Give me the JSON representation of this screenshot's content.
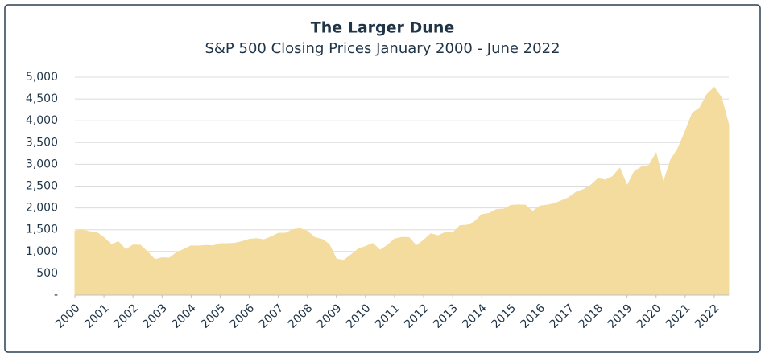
{
  "chart_data": {
    "type": "area",
    "title": "The Larger Dune",
    "subtitle": "S&P 500 Closing Prices January 2000 - June 2022",
    "color": "#f3dc9e",
    "grid": true,
    "x": [
      2000,
      2000.25,
      2000.5,
      2000.75,
      2001,
      2001.25,
      2001.5,
      2001.75,
      2002,
      2002.25,
      2002.5,
      2002.75,
      2003,
      2003.25,
      2003.5,
      2003.75,
      2004,
      2004.25,
      2004.5,
      2004.75,
      2005,
      2005.25,
      2005.5,
      2005.75,
      2006,
      2006.25,
      2006.5,
      2006.75,
      2007,
      2007.25,
      2007.5,
      2007.75,
      2008,
      2008.25,
      2008.5,
      2008.75,
      2009,
      2009.25,
      2009.5,
      2009.75,
      2010,
      2010.25,
      2010.5,
      2010.75,
      2011,
      2011.25,
      2011.5,
      2011.75,
      2012,
      2012.25,
      2012.5,
      2012.75,
      2013,
      2013.25,
      2013.5,
      2013.75,
      2014,
      2014.25,
      2014.5,
      2014.75,
      2015,
      2015.25,
      2015.5,
      2015.75,
      2016,
      2016.25,
      2016.5,
      2016.75,
      2017,
      2017.25,
      2017.5,
      2017.75,
      2018,
      2018.25,
      2018.5,
      2018.75,
      2019,
      2019.25,
      2019.5,
      2019.75,
      2020,
      2020.25,
      2020.5,
      2020.75,
      2021,
      2021.25,
      2021.5,
      2021.75,
      2022,
      2022.25,
      2022.5
    ],
    "values": [
      1469,
      1499,
      1455,
      1436,
      1320,
      1160,
      1224,
      1040,
      1148,
      1147,
      989,
      815,
      855,
      848,
      975,
      1050,
      1131,
      1126,
      1141,
      1130,
      1181,
      1180,
      1191,
      1228,
      1280,
      1295,
      1270,
      1335,
      1418,
      1420,
      1503,
      1527,
      1468,
      1322,
      1280,
      1166,
      825,
      798,
      919,
      1057,
      1115,
      1187,
      1030,
      1141,
      1286,
      1325,
      1320,
      1131,
      1258,
      1408,
      1362,
      1440,
      1426,
      1593,
      1606,
      1681,
      1848,
      1872,
      1960,
      1972,
      2058,
      2068,
      2063,
      1920,
      2043,
      2065,
      2099,
      2168,
      2238,
      2363,
      2423,
      2519,
      2673,
      2640,
      2718,
      2913,
      2507,
      2834,
      2941,
      2976,
      3258,
      2584,
      3100,
      3363,
      3756,
      4181,
      4297,
      4605,
      4766,
      4530,
      3900
    ],
    "xlim": [
      2000,
      2022.5
    ],
    "xticks": [
      2000,
      2001,
      2002,
      2003,
      2004,
      2005,
      2006,
      2007,
      2008,
      2009,
      2010,
      2011,
      2012,
      2013,
      2014,
      2015,
      2016,
      2017,
      2018,
      2019,
      2020,
      2021,
      2022
    ],
    "ylim": [
      0,
      5000
    ],
    "yticks": [
      {
        "value": 0,
        "label": "-"
      },
      500,
      {
        "value": 1000,
        "label": "1,000"
      },
      {
        "value": 1500,
        "label": "1,500"
      },
      {
        "value": 2000,
        "label": "2,000"
      },
      {
        "value": 2500,
        "label": "2,500"
      },
      {
        "value": 3000,
        "label": "3,000"
      },
      {
        "value": 3500,
        "label": "3,500"
      },
      {
        "value": 4000,
        "label": "4,000"
      },
      {
        "value": 4500,
        "label": "4,500"
      },
      {
        "value": 5000,
        "label": "5,000"
      }
    ]
  }
}
